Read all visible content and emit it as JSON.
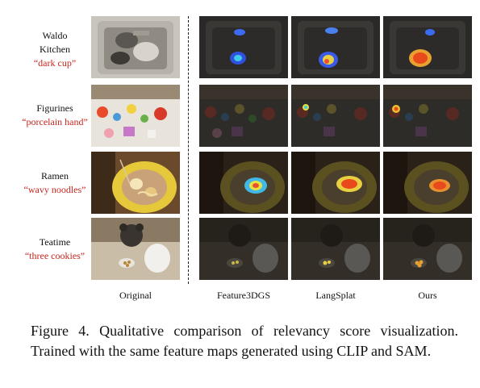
{
  "rows": [
    {
      "scene": "Waldo",
      "scene2": "Kitchen",
      "query": "“dark cup”"
    },
    {
      "scene": "Figurines",
      "query": "“porcelain hand”"
    },
    {
      "scene": "Ramen",
      "query": "“wavy noodles”"
    },
    {
      "scene": "Teatime",
      "query": "“three cookies”"
    }
  ],
  "columns": [
    "Original",
    "Feature3DGS",
    "LangSplat",
    "Ours"
  ],
  "caption": "Figure 4.  Qualitative comparison of relevancy score visualization.  Trained with the same feature maps generated using CLIP and SAM.",
  "colors": {
    "query_text": "#c8261d"
  }
}
